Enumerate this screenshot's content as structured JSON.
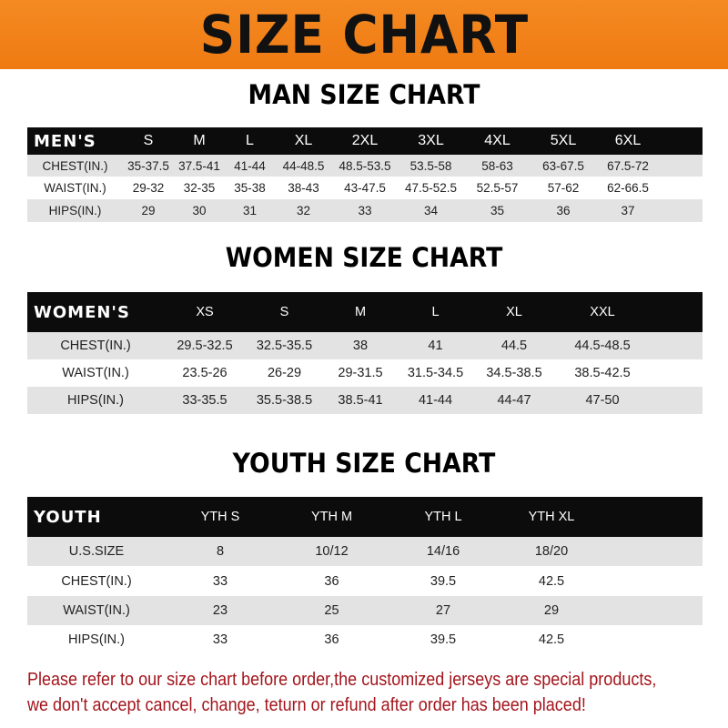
{
  "title": "SIZE CHART",
  "men": {
    "title": "MAN SIZE CHART",
    "header": [
      "MEN'S",
      "S",
      "M",
      "L",
      "XL",
      "2XL",
      "3XL",
      "4XL",
      "5XL",
      "6XL"
    ],
    "rows": [
      [
        "CHEST(IN.)",
        "35-37.5",
        "37.5-41",
        "41-44",
        "44-48.5",
        "48.5-53.5",
        "53.5-58",
        "58-63",
        "63-67.5",
        "67.5-72"
      ],
      [
        "WAIST(IN.)",
        "29-32",
        "32-35",
        "35-38",
        "38-43",
        "43-47.5",
        "47.5-52.5",
        "52.5-57",
        "57-62",
        "62-66.5"
      ],
      [
        "HIPS(IN.)",
        "29",
        "30",
        "31",
        "32",
        "33",
        "34",
        "35",
        "36",
        "37"
      ]
    ]
  },
  "women": {
    "title": "WOMEN SIZE CHART",
    "header": [
      "WOMEN'S",
      "XS",
      "S",
      "M",
      "L",
      "XL",
      "XXL"
    ],
    "rows": [
      [
        "CHEST(IN.)",
        "29.5-32.5",
        "32.5-35.5",
        "38",
        "41",
        "44.5",
        "44.5-48.5"
      ],
      [
        "WAIST(IN.)",
        "23.5-26",
        "26-29",
        "29-31.5",
        "31.5-34.5",
        "34.5-38.5",
        "38.5-42.5"
      ],
      [
        "HIPS(IN.)",
        "33-35.5",
        "35.5-38.5",
        "38.5-41",
        "41-44",
        "44-47",
        "47-50"
      ]
    ]
  },
  "youth": {
    "title": "YOUTH SIZE CHART",
    "header": [
      "YOUTH",
      "YTH S",
      "YTH M",
      "YTH L",
      "YTH XL"
    ],
    "rows": [
      [
        "U.S.SIZE",
        "8",
        "10/12",
        "14/16",
        "18/20"
      ],
      [
        "CHEST(IN.)",
        "33",
        "36",
        "39.5",
        "42.5"
      ],
      [
        "WAIST(IN.)",
        "23",
        "25",
        "27",
        "29"
      ],
      [
        "HIPS(IN.)",
        "33",
        "36",
        "39.5",
        "42.5"
      ]
    ]
  },
  "note": "Please refer to our size chart before order,the customized jerseys are special products, we don't accept cancel, change, teturn or refund after order has been placed!",
  "colors": {
    "banner": "#f08018",
    "header_row": "#0c0c0c",
    "stripe": "#e3e3e3",
    "note": "#a3141b"
  }
}
